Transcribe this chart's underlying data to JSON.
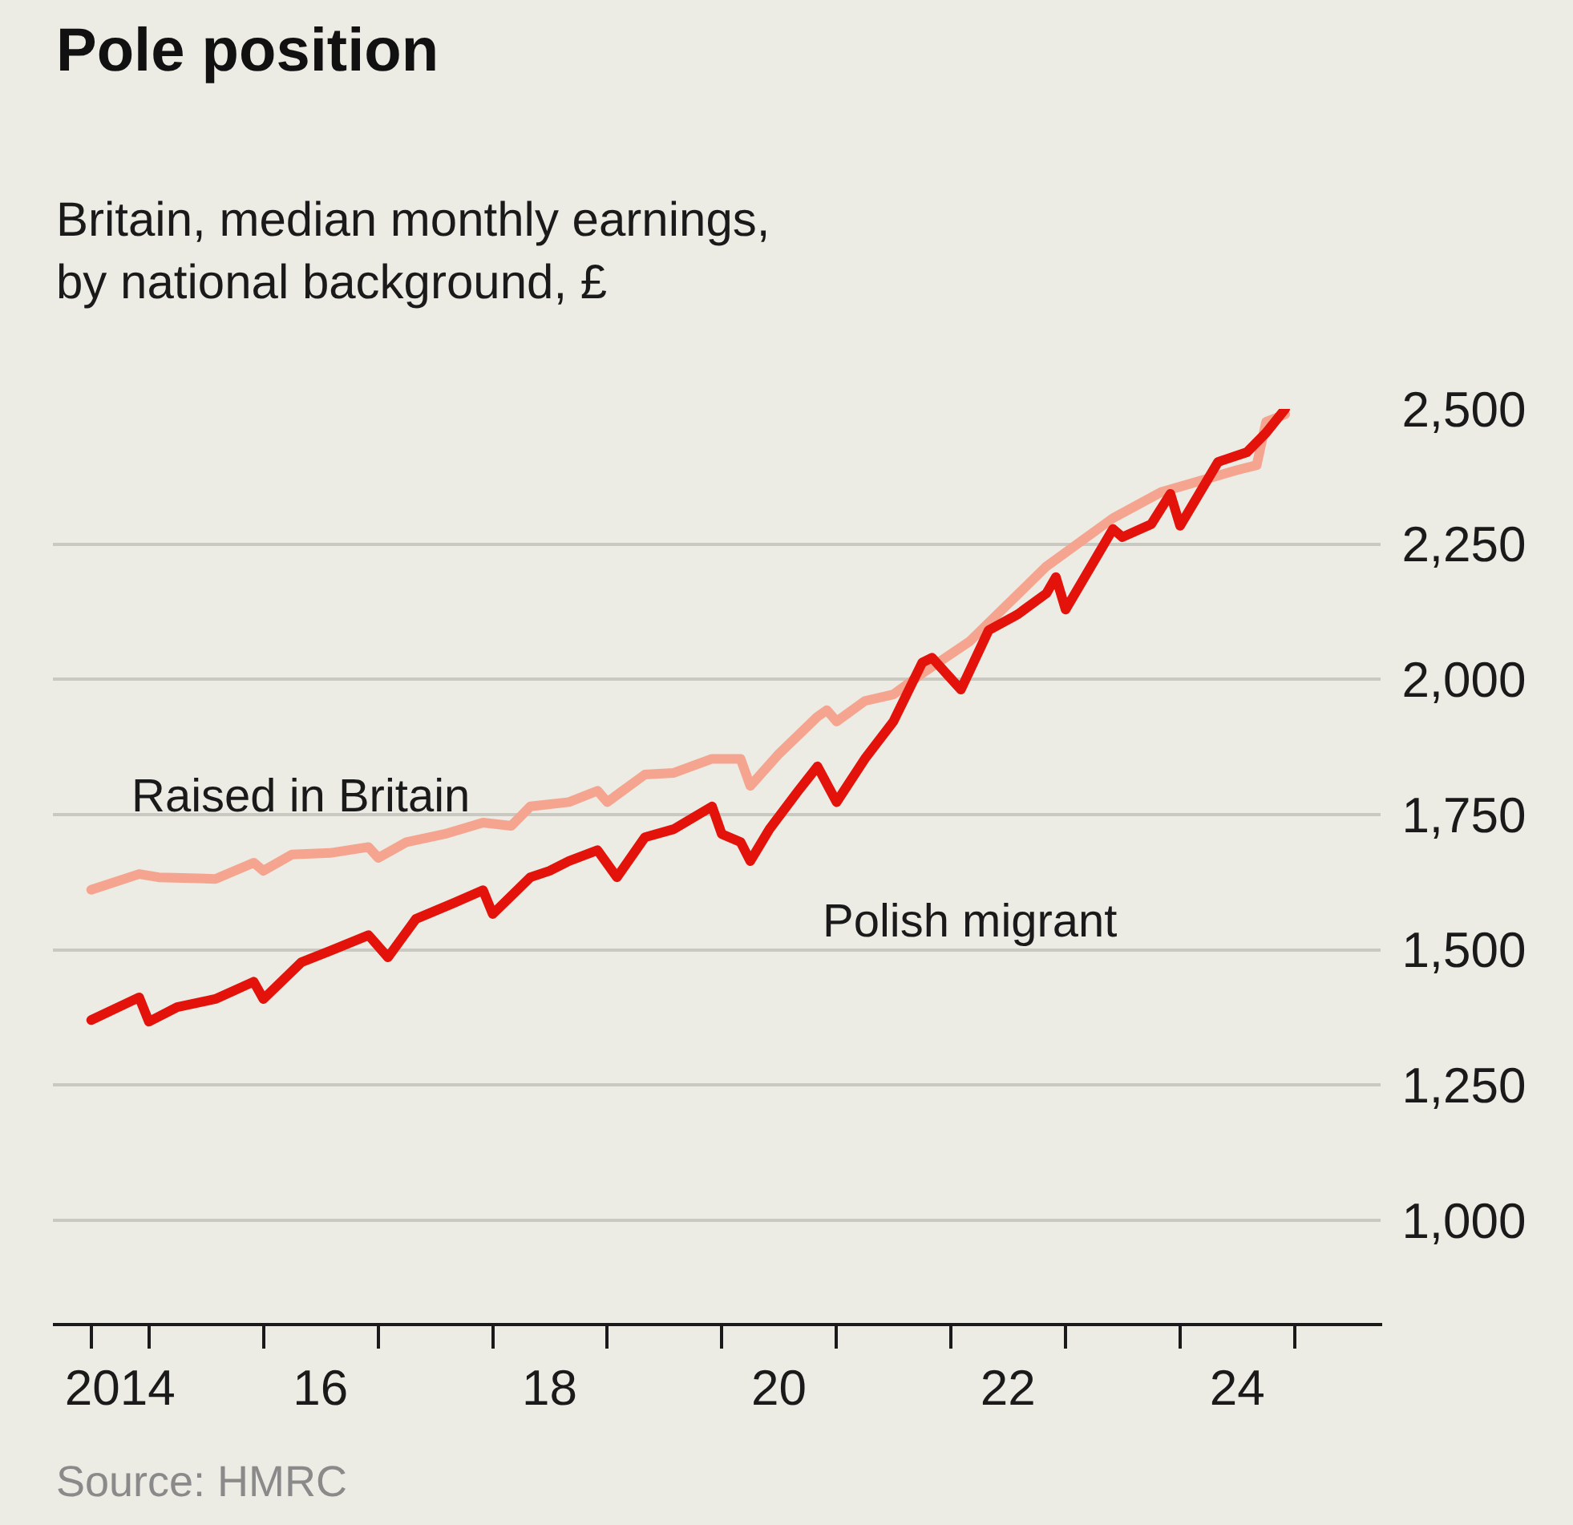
{
  "chart_data": {
    "type": "line",
    "title": "Pole position",
    "subtitle": "Britain, median monthly earnings,\nby national background, £",
    "annotations": [
      "Source: HMRC"
    ],
    "series": [
      {
        "name": "Raised in Britain",
        "color": "#f5a58f",
        "x": [
          "2014-07",
          "2014-12",
          "2015-02",
          "2015-08",
          "2015-12",
          "2016-01",
          "2016-04",
          "2016-08",
          "2016-12",
          "2017-01",
          "2017-04",
          "2017-08",
          "2017-12",
          "2018-03",
          "2018-05",
          "2018-09",
          "2018-12",
          "2019-01",
          "2019-05",
          "2019-08",
          "2019-12",
          "2020-03",
          "2020-04",
          "2020-07",
          "2020-11",
          "2020-12",
          "2021-01",
          "2021-04",
          "2021-07",
          "2021-10",
          "2022-03",
          "2022-11",
          "2023-06",
          "2023-11",
          "2024-07",
          "2024-09",
          "2024-10",
          "2024-12"
        ],
        "values": [
          1611,
          1640,
          1634,
          1631,
          1661,
          1646,
          1676,
          1679,
          1690,
          1670,
          1699,
          1714,
          1735,
          1729,
          1765,
          1773,
          1794,
          1773,
          1824,
          1827,
          1853,
          1853,
          1803,
          1862,
          1931,
          1943,
          1922,
          1960,
          1972,
          2011,
          2070,
          2209,
          2298,
          2346,
          2387,
          2396,
          2476,
          2490
        ]
      },
      {
        "name": "Polish migrant",
        "color": "#e3120b",
        "x": [
          "2014-07",
          "2014-12",
          "2015-01",
          "2015-04",
          "2015-08",
          "2015-12",
          "2016-01",
          "2016-05",
          "2016-08",
          "2016-12",
          "2017-02",
          "2017-05",
          "2017-09",
          "2017-12",
          "2018-01",
          "2018-05",
          "2018-07",
          "2018-09",
          "2018-12",
          "2019-02",
          "2019-05",
          "2019-08",
          "2019-12",
          "2020-01",
          "2020-03",
          "2020-04",
          "2020-06",
          "2020-09",
          "2020-11",
          "2021-01",
          "2021-04",
          "2021-07",
          "2021-10",
          "2021-11",
          "2022-02",
          "2022-05",
          "2022-08",
          "2022-11",
          "2022-12",
          "2023-01",
          "2023-06",
          "2023-07",
          "2023-10",
          "2023-12",
          "2024-01",
          "2024-05",
          "2024-08",
          "2024-10",
          "2024-12"
        ],
        "values": [
          1370,
          1412,
          1367,
          1394,
          1409,
          1441,
          1409,
          1477,
          1498,
          1527,
          1486,
          1557,
          1587,
          1610,
          1566,
          1634,
          1646,
          1664,
          1684,
          1634,
          1708,
          1723,
          1765,
          1714,
          1699,
          1664,
          1723,
          1794,
          1839,
          1773,
          1853,
          1922,
          2031,
          2040,
          1981,
          2091,
          2120,
          2159,
          2189,
          2129,
          2278,
          2263,
          2287,
          2343,
          2284,
          2402,
          2420,
          2456,
          2500
        ]
      }
    ],
    "xlim": [
      "2014-03",
      "2025-10"
    ],
    "xticks": [
      {
        "value": "2014-07",
        "label": null
      },
      {
        "value": "2015-01",
        "label": null
      },
      {
        "value": "2016-01",
        "label": null
      },
      {
        "value": "2017-01",
        "label": null
      },
      {
        "value": "2018-01",
        "label": null
      },
      {
        "value": "2019-01",
        "label": null
      },
      {
        "value": "2020-01",
        "label": null
      },
      {
        "value": "2021-01",
        "label": null
      },
      {
        "value": "2022-01",
        "label": null
      },
      {
        "value": "2023-01",
        "label": null
      },
      {
        "value": "2024-01",
        "label": null
      },
      {
        "value": "2025-01",
        "label": null
      },
      {
        "value": "2014-10",
        "label": "2014"
      },
      {
        "value": "2016-07",
        "label": "16"
      },
      {
        "value": "2018-07",
        "label": "18"
      },
      {
        "value": "2020-07",
        "label": "20"
      },
      {
        "value": "2022-07",
        "label": "22"
      },
      {
        "value": "2024-07",
        "label": "24"
      }
    ],
    "ylim": [
      810,
      2500
    ],
    "yticks": [
      {
        "value": 1000,
        "label": "1,000"
      },
      {
        "value": 1250,
        "label": "1,250"
      },
      {
        "value": 1500,
        "label": "1,500"
      },
      {
        "value": 1750,
        "label": "1,750"
      },
      {
        "value": 2000,
        "label": "2,000"
      },
      {
        "value": 2250,
        "label": "2,250"
      },
      {
        "value": 2500,
        "label": "2,500"
      }
    ],
    "grid": "y",
    "legend": false,
    "marker": "none",
    "line_style": "solid"
  }
}
